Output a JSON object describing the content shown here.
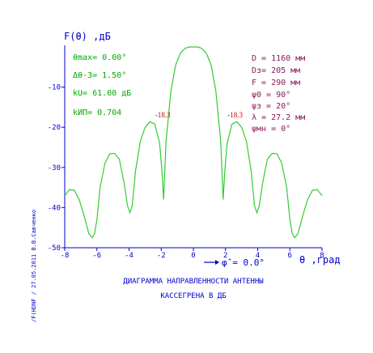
{
  "colors": {
    "axis": "#0000cc",
    "curve": "#33cc33",
    "left_param": "#00aa00",
    "right_param": "#8b1a5a",
    "side_label": "#cc0000"
  },
  "chart_data": {
    "type": "line",
    "xlim": [
      -8,
      8
    ],
    "ylim": [
      -50,
      0
    ],
    "xticks": [
      "-8",
      "-6",
      "-4",
      "-2",
      "0",
      "2",
      "4",
      "6",
      "8"
    ],
    "yticks": [
      "-10",
      "-20",
      "-30",
      "-40",
      "-50"
    ],
    "ylabel": "F(θ) ,дБ",
    "xlabel": "θ ,град",
    "x_note": "φ̂ = 0.0°",
    "grid": false,
    "side_lobe_labels": [
      {
        "text": "-18.3",
        "x": -1.9,
        "y": -18.3
      },
      {
        "text": "-18.3",
        "x": 2.6,
        "y": -18.3
      }
    ],
    "series": [
      {
        "x": [
          -8,
          -7.7,
          -7.4,
          -7.1,
          -6.8,
          -6.5,
          -6.3,
          -6.15,
          -6.0,
          -5.8,
          -5.5,
          -5.2,
          -4.9,
          -4.6,
          -4.3,
          -4.1,
          -3.95,
          -3.8,
          -3.6,
          -3.3,
          -3.0,
          -2.7,
          -2.4,
          -2.1,
          -1.95,
          -1.85,
          -1.7,
          -1.4,
          -1.1,
          -0.8,
          -0.5,
          -0.25,
          0,
          0.25,
          0.5,
          0.8,
          1.1,
          1.4,
          1.7,
          1.85,
          1.95,
          2.1,
          2.4,
          2.7,
          3.0,
          3.3,
          3.6,
          3.8,
          3.95,
          4.1,
          4.3,
          4.6,
          4.9,
          5.2,
          5.5,
          5.8,
          6.0,
          6.15,
          6.3,
          6.5,
          6.8,
          7.1,
          7.4,
          7.7,
          8
        ],
        "values": [
          -37,
          -35.5,
          -35.7,
          -38,
          -42,
          -46.5,
          -47.5,
          -46.5,
          -43,
          -35,
          -29,
          -26.6,
          -26.5,
          -28,
          -34,
          -39.5,
          -41.3,
          -39.5,
          -31,
          -23.5,
          -20,
          -18.6,
          -19.2,
          -24,
          -31,
          -38,
          -23.5,
          -11,
          -4.5,
          -1.5,
          -0.3,
          0,
          0,
          0,
          -0.3,
          -1.5,
          -4.5,
          -11,
          -23.5,
          -38,
          -31,
          -24,
          -19.2,
          -18.6,
          -20,
          -23.5,
          -31,
          -39.5,
          -41.3,
          -39.5,
          -34,
          -28,
          -26.5,
          -26.6,
          -29,
          -35,
          -43,
          -46.5,
          -47.5,
          -46.5,
          -42,
          -38,
          -35.7,
          -35.5,
          -37
        ]
      }
    ]
  },
  "params_left": {
    "l1": "θmax= 0.00°",
    "l2": "Δθ-3= 1.50°",
    "l3": "kU= 61.00 дБ",
    "l4": "kИП= 0.704"
  },
  "params_right": {
    "r1": "D = 1160 мм",
    "r2": "Dз= 205 мм",
    "r3": "F = 290 мм",
    "r4": "ψ0 = 90°",
    "r5": "ψз = 20°",
    "r6": "λ = 27.2 мм",
    "r7": "ψмн = 0°"
  },
  "caption": {
    "line1": "ДИАГРАММА НАПРАВЛЕННОСТИ АНТЕННЫ",
    "line2": "КАССЕГРЕНА В ДБ"
  },
  "side_text": "/F(HDNF / 27.05.2011 В.В.Савченко"
}
